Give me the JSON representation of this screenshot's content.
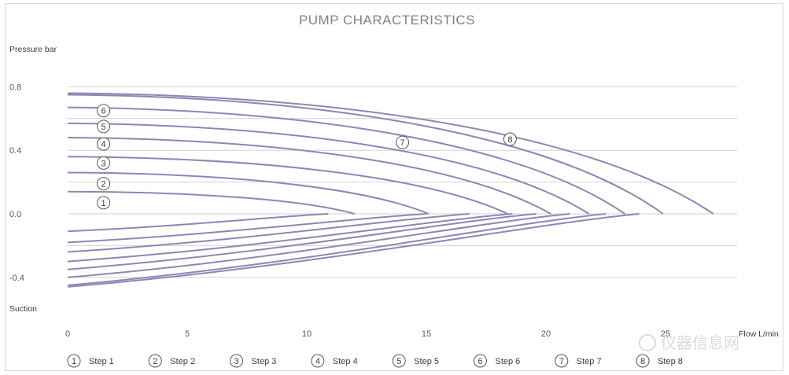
{
  "chart_data": {
    "type": "line",
    "title": "PUMP CHARACTERISTICS",
    "ylabel": "Pressure bar",
    "ylabel_bottom": "Suction",
    "xlabel": "Flow L/min",
    "xlim": [
      0,
      28
    ],
    "ylim": [
      -0.6,
      0.8
    ],
    "x_ticks": [
      0,
      5,
      10,
      15,
      20,
      25
    ],
    "y_ticks": [
      {
        "value": 0.8,
        "label": "0.8"
      },
      {
        "value": 0.4,
        "label": "0.4"
      },
      {
        "value": 0.0,
        "label": "0.0"
      },
      {
        "value": -0.4,
        "label": "-0.4"
      }
    ],
    "gridlines": [
      0.8,
      0.6,
      0.4,
      0.2,
      0.0,
      -0.2,
      -0.4
    ],
    "line_color": "#8a88b4",
    "grid_color": "#d2d2d2",
    "series": [
      {
        "name": "Step 1",
        "marker": "1",
        "pressure": {
          "x0": 0,
          "y0": 0.14,
          "x_end": 12.0
        },
        "suction": {
          "x0": 0,
          "y0": -0.11,
          "x_end": 10.9
        }
      },
      {
        "name": "Step 2",
        "marker": "2",
        "pressure": {
          "x0": 0,
          "y0": 0.26,
          "x_end": 15.1
        },
        "suction": {
          "x0": 0,
          "y0": -0.18,
          "x_end": 15.0
        }
      },
      {
        "name": "Step 3",
        "marker": "3",
        "pressure": {
          "x0": 0,
          "y0": 0.36,
          "x_end": 18.4
        },
        "suction": {
          "x0": 0,
          "y0": -0.24,
          "x_end": 16.8
        }
      },
      {
        "name": "Step 4",
        "marker": "4",
        "pressure": {
          "x0": 0,
          "y0": 0.48,
          "x_end": 20.2
        },
        "suction": {
          "x0": 0,
          "y0": -0.3,
          "x_end": 18.6
        }
      },
      {
        "name": "Step 5",
        "marker": "5",
        "pressure": {
          "x0": 0,
          "y0": 0.57,
          "x_end": 21.8
        },
        "suction": {
          "x0": 0,
          "y0": -0.35,
          "x_end": 19.6
        }
      },
      {
        "name": "Step 6",
        "marker": "6",
        "pressure": {
          "x0": 0,
          "y0": 0.67,
          "x_end": 23.3
        },
        "suction": {
          "x0": 0,
          "y0": -0.4,
          "x_end": 21.0
        }
      },
      {
        "name": "Step 7",
        "marker": "7",
        "pressure": {
          "x0": 0,
          "y0": 0.75,
          "x_end": 24.9
        },
        "suction": {
          "x0": 0,
          "y0": -0.45,
          "x_end": 22.5
        }
      },
      {
        "name": "Step 8",
        "marker": "8",
        "pressure": {
          "x0": 0,
          "y0": 0.76,
          "x_end": 27.0
        },
        "suction": {
          "x0": 0,
          "y0": -0.46,
          "x_end": 23.9
        }
      }
    ],
    "annotations": [
      {
        "marker": "1",
        "x": 1.5,
        "y": 0.07
      },
      {
        "marker": "2",
        "x": 1.5,
        "y": 0.19
      },
      {
        "marker": "3",
        "x": 1.5,
        "y": 0.32
      },
      {
        "marker": "4",
        "x": 1.5,
        "y": 0.44
      },
      {
        "marker": "5",
        "x": 1.5,
        "y": 0.55
      },
      {
        "marker": "6",
        "x": 1.5,
        "y": 0.65
      },
      {
        "marker": "7",
        "x": 14.0,
        "y": 0.45
      },
      {
        "marker": "8",
        "x": 18.5,
        "y": 0.47
      }
    ],
    "legend": {
      "placement": "bottom",
      "items": [
        {
          "marker": "1",
          "label": "Step 1"
        },
        {
          "marker": "2",
          "label": "Step 2"
        },
        {
          "marker": "3",
          "label": "Step 3"
        },
        {
          "marker": "4",
          "label": "Step 4"
        },
        {
          "marker": "5",
          "label": "Step 5"
        },
        {
          "marker": "6",
          "label": "Step 6"
        },
        {
          "marker": "7",
          "label": "Step 7"
        },
        {
          "marker": "8",
          "label": "Step 8"
        }
      ]
    }
  },
  "watermark": {
    "text": "仪器信息网"
  }
}
